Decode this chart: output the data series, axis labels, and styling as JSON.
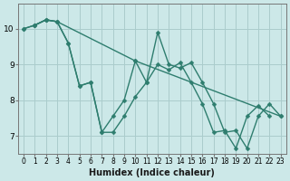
{
  "xlabel": "Humidex (Indice chaleur)",
  "xlim": [
    -0.5,
    23.5
  ],
  "ylim": [
    6.5,
    10.7
  ],
  "background_color": "#cce8e8",
  "grid_color": "#aacccc",
  "line_color": "#2e7d6e",
  "series": [
    {
      "x": [
        0,
        1,
        2,
        3,
        10,
        23
      ],
      "y": [
        10.0,
        10.1,
        10.25,
        10.2,
        9.1,
        7.55
      ]
    },
    {
      "x": [
        1,
        2,
        3,
        4,
        5,
        6,
        7,
        8,
        9,
        10,
        11,
        12,
        13,
        14,
        15,
        16,
        17,
        18,
        19,
        20,
        21,
        22,
        23
      ],
      "y": [
        10.1,
        10.25,
        10.2,
        9.6,
        8.4,
        8.5,
        7.1,
        7.1,
        7.55,
        8.1,
        8.5,
        9.9,
        9.0,
        8.9,
        9.05,
        8.5,
        7.9,
        7.1,
        7.15,
        6.65,
        7.55,
        7.9,
        7.55
      ]
    },
    {
      "x": [
        0,
        1,
        2,
        3,
        4,
        5,
        6,
        7,
        8,
        9,
        10,
        11,
        12,
        13,
        14,
        15,
        16,
        17,
        18,
        19,
        20,
        21,
        22,
        23
      ],
      "y": [
        10.0,
        10.1,
        10.25,
        10.2,
        9.6,
        8.4,
        8.5,
        7.1,
        7.55,
        8.0,
        9.1,
        8.5,
        9.0,
        8.85,
        9.05,
        8.5,
        7.9,
        7.1,
        7.15,
        6.65,
        7.55,
        7.85,
        7.55,
        null
      ]
    }
  ],
  "yticks": [
    7,
    8,
    9,
    10
  ],
  "xticks": [
    0,
    1,
    2,
    3,
    4,
    5,
    6,
    7,
    8,
    9,
    10,
    11,
    12,
    13,
    14,
    15,
    16,
    17,
    18,
    19,
    20,
    21,
    22,
    23
  ],
  "xtick_labels": [
    "0",
    "1",
    "2",
    "3",
    "4",
    "5",
    "6",
    "7",
    "8",
    "9",
    "10",
    "11",
    "12",
    "13",
    "14",
    "15",
    "16",
    "17",
    "18",
    "19",
    "20",
    "21",
    "22",
    "23"
  ],
  "tick_fontsize": 5.5,
  "label_fontsize": 7,
  "marker": "D",
  "markersize": 2.5,
  "linewidth": 1.0
}
